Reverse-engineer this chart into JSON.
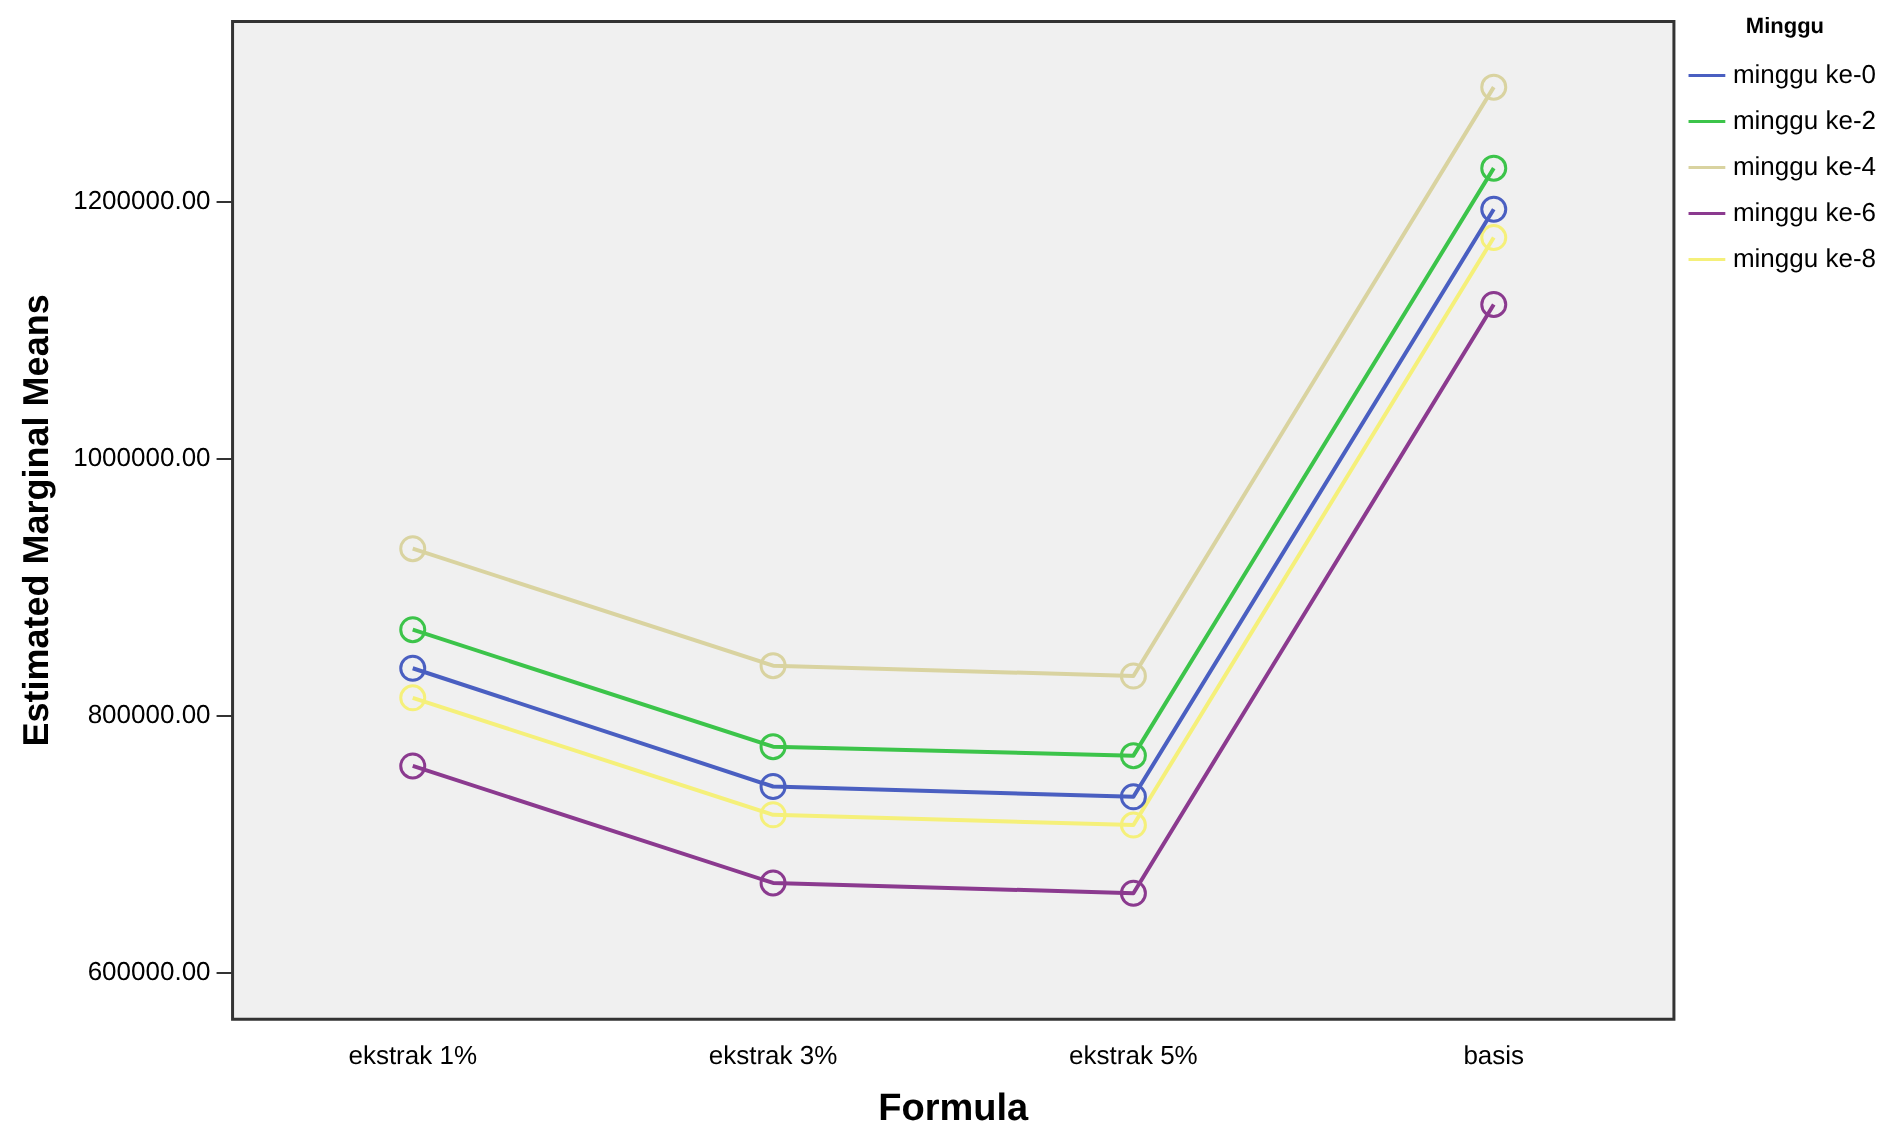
{
  "chart_data": {
    "type": "line",
    "xlabel": "Formula",
    "ylabel": "Estimated Marginal Means",
    "legend_title": "Minggu",
    "categories": [
      "ekstrak 1%",
      "ekstrak 3%",
      "ekstrak 5%",
      "basis"
    ],
    "series": [
      {
        "name": "minggu ke-0",
        "color": "#4a5fc1",
        "values": [
          837000,
          745000,
          737000,
          1194000
        ]
      },
      {
        "name": "minggu ke-2",
        "color": "#3cc44a",
        "values": [
          867000,
          776000,
          769000,
          1226000
        ]
      },
      {
        "name": "minggu ke-4",
        "color": "#d9d3a0",
        "values": [
          930000,
          839000,
          831000,
          1289000
        ]
      },
      {
        "name": "minggu ke-6",
        "color": "#8b3a8f",
        "values": [
          761000,
          670000,
          662000,
          1120000
        ]
      },
      {
        "name": "minggu ke-8",
        "color": "#f5f07a",
        "values": [
          814000,
          723000,
          715000,
          1172000
        ]
      }
    ],
    "ylim": [
      564000,
      1340000
    ],
    "yticks": [
      {
        "value": 600000,
        "label": "600000.00"
      },
      {
        "value": 800000,
        "label": "800000.00"
      },
      {
        "value": 1000000,
        "label": "1000000.00"
      },
      {
        "value": 1200000,
        "label": "1200000.00"
      }
    ],
    "grid": false,
    "legend": "right",
    "marker": "circle",
    "line_style": "solid"
  }
}
